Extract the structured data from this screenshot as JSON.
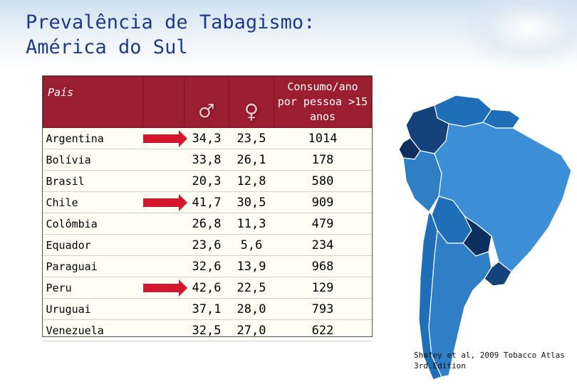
{
  "title": "Prevalência de Tabagismo:\nAmérica do Sul",
  "table": {
    "headers": {
      "country": "País",
      "male_symbol": "♂",
      "female_symbol": "♀",
      "consumption": "Consumo/ano por pessoa >15 anos"
    },
    "rows": [
      {
        "country": "Argentina",
        "arrow": true,
        "male": "34,3",
        "female": "23,5",
        "consumption": "1014"
      },
      {
        "country": "Bolívia",
        "arrow": false,
        "male": "33,8",
        "female": "26,1",
        "consumption": "178"
      },
      {
        "country": "Brasil",
        "arrow": false,
        "male": "20,3",
        "female": "12,8",
        "consumption": "580"
      },
      {
        "country": "Chile",
        "arrow": true,
        "male": "41,7",
        "female": "30,5",
        "consumption": "909"
      },
      {
        "country": "Colômbia",
        "arrow": false,
        "male": "26,8",
        "female": "11,3",
        "consumption": "479"
      },
      {
        "country": "Equador",
        "arrow": false,
        "male": "23,6",
        "female": "5,6",
        "consumption": "234"
      },
      {
        "country": "Paraguai",
        "arrow": false,
        "male": "32,6",
        "female": "13,9",
        "consumption": "968"
      },
      {
        "country": "Peru",
        "arrow": true,
        "male": "42,6",
        "female": "22,5",
        "consumption": "129"
      },
      {
        "country": "Uruguai",
        "arrow": false,
        "male": "37,1",
        "female": "28,0",
        "consumption": "793"
      },
      {
        "country": "Venezuela",
        "arrow": false,
        "male": "32,5",
        "female": "27,0",
        "consumption": "622"
      }
    ]
  },
  "colors": {
    "header_bg": "#9a1d30",
    "arrow": "#d4162c",
    "title": "#1f3a8a",
    "map_dark": "#14427a",
    "map_mid": "#1f6fb8",
    "map_light": "#3b8fd6"
  },
  "credit": "Shafey et al, 2009 Tobacco Atlas\n3rd.Edition"
}
